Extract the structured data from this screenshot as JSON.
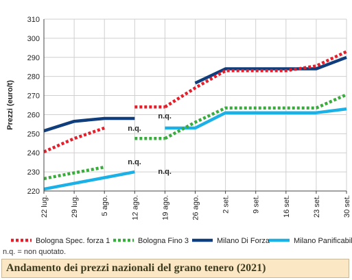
{
  "chart_data": {
    "type": "line",
    "title": "Andamento dei prezzi nazionali del grano tenero (2021)",
    "ylabel": "Prezzi (euro/t)",
    "xlabel": "",
    "categories": [
      "22 lug.",
      "29 lug.",
      "5 ago.",
      "12 ago.",
      "19 ago.",
      "26 ago.",
      "2 set.",
      "9 set.",
      "16 set.",
      "23 set.",
      "30 set."
    ],
    "ylim": [
      220,
      310
    ],
    "yticks": [
      220,
      230,
      240,
      250,
      260,
      270,
      280,
      290,
      300,
      310
    ],
    "grid": true,
    "legend_position": "bottom",
    "series": [
      {
        "name": "Bologna Spec. forza 1",
        "color": "#e41f2c",
        "style": "dotted",
        "segments": [
          [
            [
              0,
              240.5
            ],
            [
              1,
              247.5
            ],
            [
              2,
              253
            ]
          ],
          [
            [
              3,
              264
            ],
            [
              4,
              264
            ]
          ],
          [
            [
              4,
              264
            ],
            [
              5,
              274
            ],
            [
              6,
              283
            ],
            [
              7,
              283
            ],
            [
              8,
              283
            ],
            [
              9,
              285.5
            ],
            [
              10,
              293
            ]
          ]
        ]
      },
      {
        "name": "Bologna Fino 3",
        "color": "#3aab3d",
        "style": "dotted",
        "segments": [
          [
            [
              0,
              226.5
            ],
            [
              1,
              229.5
            ],
            [
              2,
              232.5
            ]
          ],
          [
            [
              3,
              247.5
            ],
            [
              4,
              247.5
            ]
          ],
          [
            [
              4,
              247.5
            ],
            [
              5,
              256
            ],
            [
              6,
              263.5
            ],
            [
              7,
              263.5
            ],
            [
              8,
              263.5
            ],
            [
              9,
              263.5
            ],
            [
              10,
              270.5
            ]
          ]
        ]
      },
      {
        "name": "Milano Di Forza",
        "color": "#103d7c",
        "style": "solid",
        "segments": [
          [
            [
              0,
              251.5
            ],
            [
              1,
              256.5
            ],
            [
              2,
              258
            ],
            [
              3,
              258
            ]
          ],
          [
            [
              5,
              276.5
            ],
            [
              6,
              284
            ],
            [
              7,
              284
            ],
            [
              8,
              284
            ],
            [
              9,
              284
            ],
            [
              10,
              290
            ]
          ]
        ]
      },
      {
        "name": "Milano Panificabile",
        "color": "#1cb1e6",
        "style": "solid",
        "segments": [
          [
            [
              0,
              221
            ],
            [
              1,
              224
            ],
            [
              2,
              227
            ],
            [
              3,
              230
            ]
          ],
          [
            [
              4,
              253
            ],
            [
              5,
              253
            ],
            [
              6,
              261
            ],
            [
              7,
              261
            ],
            [
              8,
              261
            ],
            [
              9,
              261
            ],
            [
              10,
              263
            ]
          ]
        ]
      }
    ],
    "annotations": [
      {
        "text": "n.q.",
        "x": 4,
        "y": 258
      },
      {
        "text": "n.q.",
        "x": 3,
        "y": 251.5
      },
      {
        "text": "n.q.",
        "x": 3,
        "y": 234
      },
      {
        "text": "n.q.",
        "x": 4,
        "y": 229
      }
    ],
    "footnote": "n.q. = non quotato."
  }
}
